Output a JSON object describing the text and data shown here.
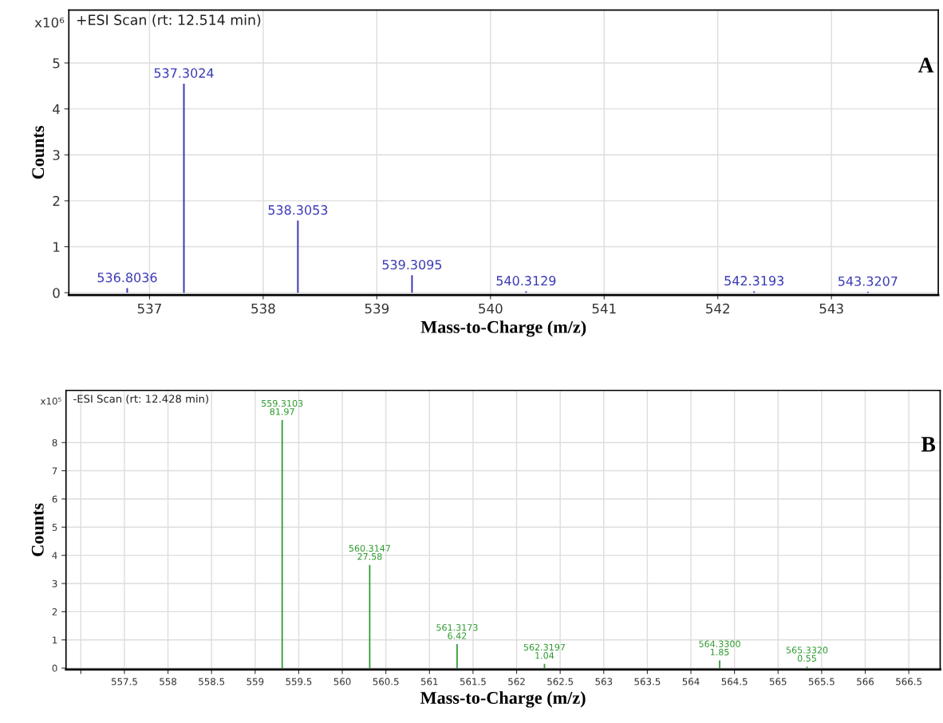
{
  "chart_data": [
    {
      "type": "bar",
      "title": "+ESI Scan (rt: 12.514 min)",
      "xlabel": "Mass-to-Charge (m/z)",
      "ylabel": "Counts",
      "annotations": [
        "x10⁶",
        "A",
        {
          "text": "536.8036",
          "x": 536.8036,
          "y": 0.1
        },
        {
          "text": "537.3024",
          "x": 537.3024,
          "y": 4.55
        },
        {
          "text": "538.3053",
          "x": 538.3053,
          "y": 1.57
        },
        {
          "text": "539.3095",
          "x": 539.3095,
          "y": 0.38
        },
        {
          "text": "540.3129",
          "x": 540.3129,
          "y": 0.03
        },
        {
          "text": "542.3193",
          "x": 542.3193,
          "y": 0.03
        },
        {
          "text": "543.3207",
          "x": 543.3207,
          "y": 0.02
        }
      ],
      "x": [
        536.8036,
        537.3024,
        538.3053,
        539.3095,
        540.3129,
        542.3193,
        543.3207
      ],
      "series": [
        {
          "color": "#3a3ab4",
          "values": [
            0.1,
            4.55,
            1.57,
            0.38,
            0.03,
            0.03,
            0.02
          ]
        }
      ],
      "xlim": [
        536.29,
        543.94
      ],
      "xticks": [
        537,
        538,
        539,
        540,
        541,
        542,
        543
      ],
      "ylim": [
        -0.05,
        6.15
      ],
      "yticks": [
        0,
        1,
        2,
        3,
        4,
        5
      ],
      "grid": true
    },
    {
      "type": "bar",
      "title": "-ESI Scan (rt: 12.428 min)",
      "xlabel": "Mass-to-Charge (m/z)",
      "ylabel": "Counts",
      "annotations": [
        "x10⁵",
        "B",
        {
          "text": "559.3103\n81.97",
          "x": 559.3103,
          "y": 8.8
        },
        {
          "text": "560.3147\n27.58",
          "x": 560.3147,
          "y": 3.66
        },
        {
          "text": "561.3173\n6.42",
          "x": 561.3173,
          "y": 0.85
        },
        {
          "text": "562.3197\n1.04",
          "x": 562.3197,
          "y": 0.15
        },
        {
          "text": "564.3300\n1.85",
          "x": 564.33,
          "y": 0.27
        },
        {
          "text": "565.3320\n0.55",
          "x": 565.332,
          "y": 0.05
        }
      ],
      "x": [
        559.3103,
        560.3147,
        561.3173,
        562.3197,
        564.33,
        565.332
      ],
      "series": [
        {
          "color": "#2e9a2e",
          "values": [
            8.8,
            3.66,
            0.85,
            0.15,
            0.27,
            0.05
          ]
        }
      ],
      "xlim": [
        556.83,
        566.86
      ],
      "xticks": [
        {
          "value": 557,
          "label": null
        },
        557.5,
        558,
        558.5,
        559,
        559.5,
        560,
        560.5,
        561,
        561.5,
        562,
        562.5,
        563,
        563.5,
        564,
        564.5,
        565,
        565.5,
        566,
        566.5
      ],
      "ylim": [
        -0.05,
        9.85
      ],
      "yticks": [
        0,
        1,
        2,
        3,
        4,
        5,
        6,
        7,
        8
      ],
      "grid": true
    }
  ]
}
